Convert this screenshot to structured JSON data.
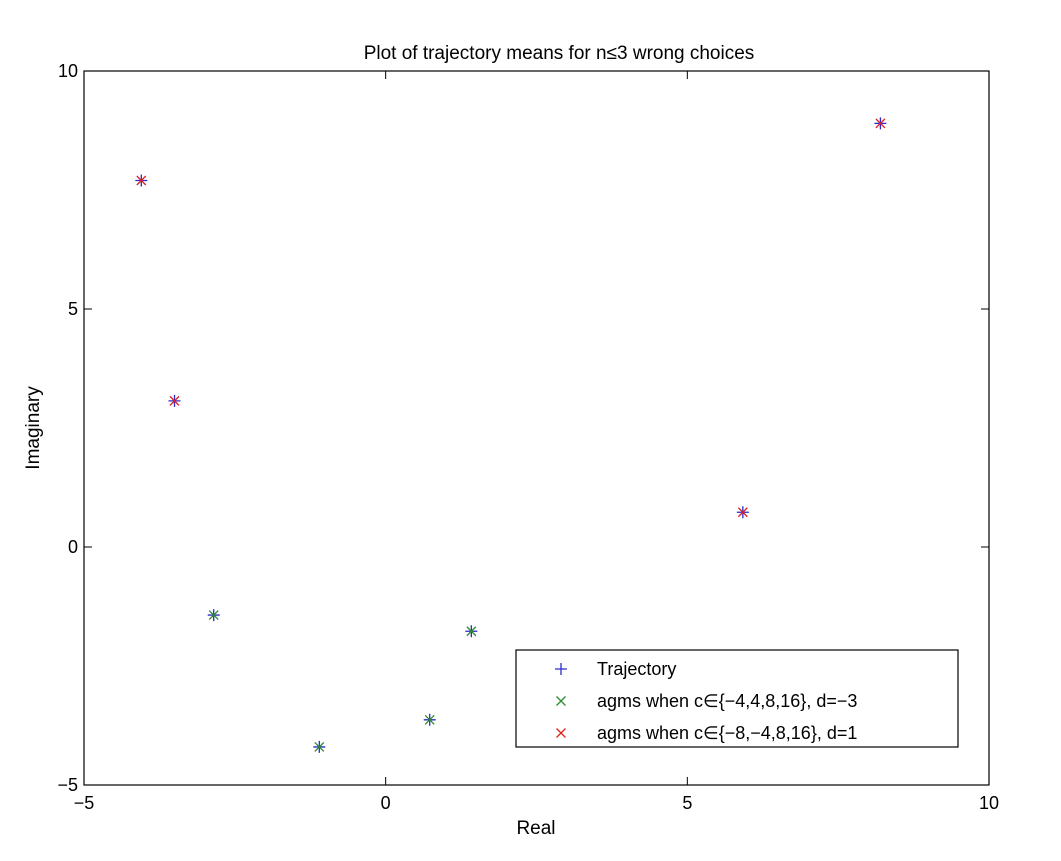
{
  "chart_data": {
    "type": "scatter",
    "title": "Plot of trajectory means for n≤3 wrong choices",
    "xlabel": "Real",
    "ylabel": "Imaginary",
    "xlim": [
      -5,
      10
    ],
    "ylim": [
      -5,
      10
    ],
    "xticks": [
      -5,
      0,
      5,
      10
    ],
    "yticks": [
      -5,
      0,
      5,
      10
    ],
    "xtick_labels": [
      "−5",
      "0",
      "5",
      "10"
    ],
    "ytick_labels": [
      "−5",
      "0",
      "5",
      "10"
    ],
    "grid": false,
    "legend_position": "bottom-right",
    "series": [
      {
        "name": "Trajectory",
        "marker": "+",
        "color": "#2b2bcc",
        "points": [
          {
            "x": -4.05,
            "y": 7.7
          },
          {
            "x": -3.5,
            "y": 3.07
          },
          {
            "x": -2.85,
            "y": -1.43
          },
          {
            "x": -1.1,
            "y": -4.2
          },
          {
            "x": 0.73,
            "y": -3.63
          },
          {
            "x": 1.42,
            "y": -1.77
          },
          {
            "x": 5.92,
            "y": 0.73
          },
          {
            "x": 8.2,
            "y": 8.9
          }
        ]
      },
      {
        "name": "agms when c∈{−4,4,8,16}, d=−3",
        "marker": "x",
        "color": "#2e8b2e",
        "points": [
          {
            "x": -2.85,
            "y": -1.43
          },
          {
            "x": -1.1,
            "y": -4.2
          },
          {
            "x": 0.73,
            "y": -3.63
          },
          {
            "x": 1.42,
            "y": -1.77
          }
        ]
      },
      {
        "name": "agms when c∈{−8,−4,8,16}, d=1",
        "marker": "x",
        "color": "#dd2222",
        "points": [
          {
            "x": -4.05,
            "y": 7.7
          },
          {
            "x": -3.5,
            "y": 3.07
          },
          {
            "x": 5.92,
            "y": 0.73
          },
          {
            "x": 8.2,
            "y": 8.9
          }
        ]
      }
    ]
  }
}
